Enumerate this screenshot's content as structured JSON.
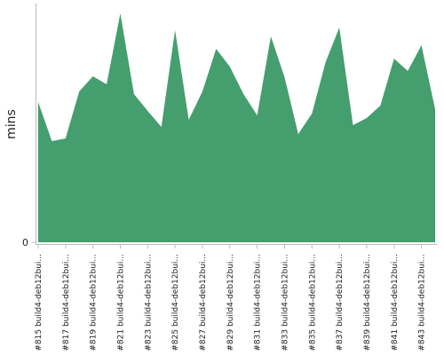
{
  "chart_data": {
    "type": "area",
    "ylabel": "mins",
    "categories": [
      "#815 build4-deb12bui...",
      null,
      "#817 build4-deb12bui...",
      null,
      "#819 build4-deb12bui...",
      null,
      "#821 build4-deb12bui...",
      null,
      "#823 build4-deb12bui...",
      null,
      "#825 build4-deb12bui...",
      null,
      "#827 build4-deb12bui...",
      null,
      "#829 build4-deb12bui...",
      null,
      "#831 build4-deb12bui...",
      null,
      "#833 build4-deb12bui...",
      null,
      "#835 build4-deb12bui...",
      null,
      "#837 build4-deb12bui...",
      null,
      "#839 build4-deb12bui...",
      null,
      "#841 build4-deb12bui...",
      null,
      "#843 build4-deb12bui...",
      null
    ],
    "values": [
      158,
      114,
      117,
      170,
      187,
      178,
      258,
      167,
      148,
      130,
      239,
      138,
      170,
      218,
      198,
      167,
      143,
      232,
      186,
      122,
      145,
      203,
      242,
      132,
      140,
      154,
      207,
      193,
      222,
      150
    ],
    "color": "#459e6e",
    "ylim": [
      0,
      270
    ],
    "yticks": [
      0
    ]
  }
}
